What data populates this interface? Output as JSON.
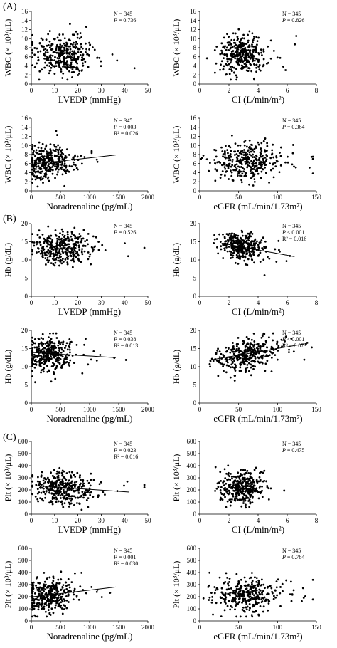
{
  "sections": [
    {
      "label": "(A)"
    },
    {
      "label": "(B)"
    },
    {
      "label": "(C)"
    }
  ],
  "chart_data": [
    {
      "type": "scatter",
      "section": "A",
      "xlabel": "LVEDP (mmHg)",
      "ylabel": "WBC (× 10³/μL)",
      "xlim": [
        0,
        50
      ],
      "ylim": [
        0,
        16
      ],
      "xticks": [
        0,
        10,
        20,
        30,
        40,
        50
      ],
      "yticks": [
        0,
        2,
        4,
        6,
        8,
        10,
        12,
        14,
        16
      ],
      "stats": [
        "N = 345",
        "P = 0.736"
      ],
      "trendline": null,
      "cloud": {
        "n": 345,
        "x_center": 13,
        "x_spread": 6,
        "y_center": 6.5,
        "y_spread": 2.0
      }
    },
    {
      "type": "scatter",
      "section": "A",
      "xlabel": "CI (L/min/m²)",
      "ylabel": "WBC (× 10³/μL)",
      "xlim": [
        0,
        8
      ],
      "ylim": [
        0,
        16
      ],
      "xticks": [
        0,
        2,
        4,
        6,
        8
      ],
      "yticks": [
        0,
        2,
        4,
        6,
        8,
        10,
        12,
        14,
        16
      ],
      "stats": [
        "N = 345",
        "P = 0.826"
      ],
      "trendline": null,
      "cloud": {
        "n": 345,
        "x_center": 2.8,
        "x_spread": 0.7,
        "y_center": 6.5,
        "y_spread": 2.0
      }
    },
    {
      "type": "scatter",
      "section": "A",
      "xlabel": "Noradrenaline (pg/mL)",
      "ylabel": "WBC (× 10³/μL)",
      "xlim": [
        0,
        2000
      ],
      "ylim": [
        0,
        16
      ],
      "xticks": [
        0,
        500,
        1000,
        1500,
        2000
      ],
      "yticks": [
        0,
        2,
        4,
        6,
        8,
        10,
        12,
        14,
        16
      ],
      "stats": [
        "N = 345",
        "P = 0.003",
        "R² = 0.026"
      ],
      "trendline": {
        "x": [
          30,
          1450
        ],
        "y": [
          5.9,
          7.9
        ]
      },
      "cloud": {
        "n": 345,
        "x_center": 300,
        "x_spread": 200,
        "y_center": 6.5,
        "y_spread": 2.0
      }
    },
    {
      "type": "scatter",
      "section": "A",
      "xlabel": "eGFR (mL/min/1.73m²)",
      "ylabel": "WBC (× 10³/μL)",
      "xlim": [
        0,
        150
      ],
      "ylim": [
        0,
        16
      ],
      "xticks": [
        0,
        50,
        100,
        150
      ],
      "yticks": [
        0,
        2,
        4,
        6,
        8,
        10,
        12,
        14,
        16
      ],
      "stats": [
        "N = 345",
        "P = 0.364"
      ],
      "trendline": null,
      "cloud": {
        "n": 345,
        "x_center": 60,
        "x_spread": 20,
        "y_center": 6.5,
        "y_spread": 2.0
      }
    },
    {
      "type": "scatter",
      "section": "B",
      "xlabel": "LVEDP (mmHg)",
      "ylabel": "Hb (g/dL)",
      "xlim": [
        0,
        50
      ],
      "ylim": [
        0,
        20
      ],
      "xticks": [
        0,
        10,
        20,
        30,
        40,
        50
      ],
      "yticks": [
        0,
        5,
        10,
        15,
        20
      ],
      "stats": [
        "N = 345",
        "P = 0.526"
      ],
      "trendline": null,
      "cloud": {
        "n": 345,
        "x_center": 13,
        "x_spread": 6,
        "y_center": 13.5,
        "y_spread": 2.2
      }
    },
    {
      "type": "scatter",
      "section": "B",
      "xlabel": "CI (L/min/m²)",
      "ylabel": "Hb (g/dL)",
      "xlim": [
        0,
        8
      ],
      "ylim": [
        0,
        20
      ],
      "xticks": [
        0,
        2,
        4,
        6,
        8
      ],
      "yticks": [
        0,
        5,
        10,
        15,
        20
      ],
      "stats": [
        "N = 345",
        "P < 0.001",
        "R² = 0.016"
      ],
      "trendline": {
        "x": [
          1.5,
          6.5
        ],
        "y": [
          14.6,
          10.9
        ]
      },
      "cloud": {
        "n": 345,
        "x_center": 2.8,
        "x_spread": 0.7,
        "y_center": 13.8,
        "y_spread": 2.0
      }
    },
    {
      "type": "scatter",
      "section": "B",
      "xlabel": "Noradrenaline (pg/mL)",
      "ylabel": "Hb (g/dL)",
      "xlim": [
        0,
        2000
      ],
      "ylim": [
        0,
        20
      ],
      "xticks": [
        0,
        500,
        1000,
        1500,
        2000
      ],
      "yticks": [
        0,
        5,
        10,
        15,
        20
      ],
      "stats": [
        "N = 345",
        "P = 0.038",
        "R² = 0.013"
      ],
      "trendline": {
        "x": [
          30,
          1450
        ],
        "y": [
          13.9,
          12.5
        ]
      },
      "cloud": {
        "n": 345,
        "x_center": 300,
        "x_spread": 200,
        "y_center": 13.5,
        "y_spread": 2.2
      }
    },
    {
      "type": "scatter",
      "section": "B",
      "xlabel": "eGFR (mL/min/1.73m²)",
      "ylabel": "Hb (g/dL)",
      "xlim": [
        0,
        150
      ],
      "ylim": [
        0,
        20
      ],
      "xticks": [
        0,
        50,
        100,
        150
      ],
      "yticks": [
        0,
        5,
        10,
        15,
        20
      ],
      "stats": [
        "N = 345",
        "P < 0.001",
        "R² = 0.073"
      ],
      "trendline": {
        "x": [
          12,
          135
        ],
        "y": [
          11.8,
          16.3
        ]
      },
      "cloud": {
        "n": 345,
        "x_center": 60,
        "x_spread": 20,
        "y_center": 13.5,
        "y_spread": 2.2
      }
    },
    {
      "type": "scatter",
      "section": "C",
      "xlabel": "LVEDP (mmHg)",
      "ylabel": "Plt (× 10³/μL)",
      "xlim": [
        0,
        50
      ],
      "ylim": [
        0,
        600
      ],
      "xticks": [
        0,
        10,
        20,
        30,
        40,
        50
      ],
      "yticks": [
        0,
        100,
        200,
        300,
        400,
        500,
        600
      ],
      "stats": [
        "N = 345",
        "P = 0.023",
        "R² = 0.016"
      ],
      "trendline": {
        "x": [
          2,
          42
        ],
        "y": [
          235,
          182
        ]
      },
      "cloud": {
        "n": 345,
        "x_center": 13,
        "x_spread": 6,
        "y_center": 215,
        "y_spread": 70
      }
    },
    {
      "type": "scatter",
      "section": "C",
      "xlabel": "CI (L/min/m²)",
      "ylabel": "Plt (× 10³/μL)",
      "xlim": [
        0,
        8
      ],
      "ylim": [
        0,
        600
      ],
      "xticks": [
        0,
        2,
        4,
        6,
        8
      ],
      "yticks": [
        0,
        100,
        200,
        300,
        400,
        500,
        600
      ],
      "stats": [
        "N = 345",
        "P = 0.475"
      ],
      "trendline": null,
      "cloud": {
        "n": 345,
        "x_center": 2.8,
        "x_spread": 0.7,
        "y_center": 215,
        "y_spread": 70
      }
    },
    {
      "type": "scatter",
      "section": "C",
      "xlabel": "Noradrenaline (pg/mL)",
      "ylabel": "Plt (× 10³/μL)",
      "xlim": [
        0,
        2000
      ],
      "ylim": [
        0,
        600
      ],
      "xticks": [
        0,
        500,
        1000,
        1500,
        2000
      ],
      "yticks": [
        0,
        100,
        200,
        300,
        400,
        500,
        600
      ],
      "stats": [
        "N = 345",
        "P = 0.001",
        "R² = 0.030"
      ],
      "trendline": {
        "x": [
          30,
          1450
        ],
        "y": [
          200,
          280
        ]
      },
      "cloud": {
        "n": 345,
        "x_center": 300,
        "x_spread": 200,
        "y_center": 215,
        "y_spread": 70
      }
    },
    {
      "type": "scatter",
      "section": "C",
      "xlabel": "eGFR (mL/min/1.73m²)",
      "ylabel": "Plt (× 10³/μL)",
      "xlim": [
        0,
        150
      ],
      "ylim": [
        0,
        600
      ],
      "xticks": [
        0,
        50,
        100,
        150
      ],
      "yticks": [
        0,
        100,
        200,
        300,
        400,
        500,
        600
      ],
      "stats": [
        "N = 345",
        "P = 0.784"
      ],
      "trendline": null,
      "cloud": {
        "n": 345,
        "x_center": 60,
        "x_spread": 20,
        "y_center": 215,
        "y_spread": 70
      }
    }
  ]
}
